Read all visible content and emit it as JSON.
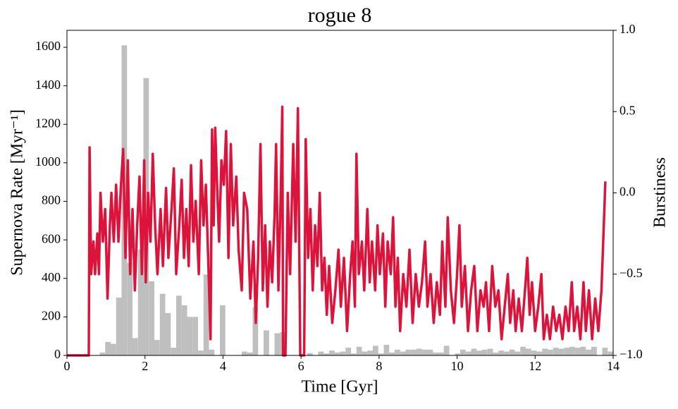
{
  "chart_data": [
    {
      "type": "histogram",
      "title": "rogue 8",
      "x_label": "Time [Gyr]",
      "y_label": "Supernova Rate [Myr⁻¹]",
      "color": "#bfbfbf",
      "bins": [
        0,
        0.14,
        0.28,
        0.42,
        0.56,
        0.7,
        0.84,
        0.98,
        1.12,
        1.26,
        1.4,
        1.54,
        1.68,
        1.82,
        1.96,
        2.1,
        2.24,
        2.38,
        2.52,
        2.66,
        2.8,
        2.94,
        3.08,
        3.22,
        3.36,
        3.5,
        3.64,
        3.78,
        3.92,
        4.06,
        4.2,
        4.34,
        4.48,
        4.62,
        4.76,
        4.9,
        5.04,
        5.18,
        5.32,
        5.46,
        5.6,
        5.74,
        5.88,
        6.02,
        6.16,
        6.3,
        6.44,
        6.58,
        6.72,
        6.86,
        7,
        7.14,
        7.28,
        7.42,
        7.56,
        7.7,
        7.84,
        7.98,
        8.12,
        8.26,
        8.4,
        8.54,
        8.68,
        8.82,
        8.96,
        9.1,
        9.24,
        9.38,
        9.52,
        9.66,
        9.8,
        9.94,
        10.08,
        10.22,
        10.36,
        10.5,
        10.64,
        10.78,
        10.92,
        11.06,
        11.2,
        11.34,
        11.48,
        11.62,
        11.76,
        11.9,
        12.04,
        12.18,
        12.32,
        12.46,
        12.6,
        12.74,
        12.88,
        13.02,
        13.16,
        13.3,
        13.44,
        13.58,
        13.72,
        13.86,
        14
      ],
      "values": [
        0,
        0,
        0,
        0,
        0,
        0,
        15,
        70,
        60,
        300,
        1610,
        480,
        90,
        550,
        1440,
        385,
        80,
        320,
        220,
        40,
        310,
        260,
        200,
        200,
        25,
        420,
        30,
        0,
        260,
        0,
        0,
        0,
        20,
        15,
        250,
        0,
        130,
        0,
        115,
        120,
        0,
        0,
        0,
        0,
        12,
        0,
        20,
        10,
        25,
        15,
        20,
        40,
        10,
        45,
        20,
        25,
        50,
        10,
        55,
        15,
        30,
        20,
        30,
        30,
        35,
        30,
        30,
        15,
        15,
        50,
        0,
        10,
        30,
        20,
        35,
        25,
        30,
        35,
        15,
        25,
        20,
        30,
        20,
        45,
        35,
        25,
        20,
        35,
        30,
        40,
        35,
        40,
        45,
        40,
        45,
        30,
        45,
        0,
        40,
        20
      ],
      "xlim": [
        0,
        14
      ],
      "xticks": [
        0,
        2,
        4,
        6,
        8,
        10,
        12,
        14
      ],
      "ylim": [
        0,
        1688
      ],
      "yticks": [
        0,
        200,
        400,
        600,
        800,
        1000,
        1200,
        1400,
        1600
      ]
    },
    {
      "type": "line",
      "y2_label": "Burstiness",
      "color": "#dc143c",
      "x": [
        0,
        0.56,
        0.58,
        0.62,
        0.68,
        0.72,
        0.78,
        0.82,
        0.86,
        0.92,
        0.98,
        1.04,
        1.1,
        1.14,
        1.2,
        1.26,
        1.32,
        1.38,
        1.44,
        1.5,
        1.56,
        1.62,
        1.68,
        1.74,
        1.8,
        1.86,
        1.92,
        1.98,
        2.02,
        2.08,
        2.14,
        2.2,
        2.26,
        2.32,
        2.4,
        2.46,
        2.54,
        2.6,
        2.68,
        2.74,
        2.8,
        2.88,
        2.94,
        3.0,
        3.06,
        3.12,
        3.18,
        3.24,
        3.3,
        3.38,
        3.44,
        3.5,
        3.56,
        3.62,
        3.68,
        3.72,
        3.76,
        3.8,
        3.84,
        3.9,
        3.96,
        4.02,
        4.08,
        4.14,
        4.2,
        4.26,
        4.34,
        4.4,
        4.48,
        4.54,
        4.62,
        4.7,
        4.78,
        4.84,
        4.9,
        4.96,
        5.02,
        5.08,
        5.14,
        5.2,
        5.26,
        5.32,
        5.36,
        5.42,
        5.48,
        5.52,
        5.54,
        5.6,
        5.66,
        5.72,
        5.8,
        5.86,
        5.92,
        5.98,
        6.08,
        6.12,
        6.18,
        6.24,
        6.3,
        6.36,
        6.42,
        6.48,
        6.54,
        6.6,
        6.66,
        6.72,
        6.8,
        6.88,
        6.96,
        7.02,
        7.1,
        7.18,
        7.26,
        7.32,
        7.38,
        7.42,
        7.48,
        7.56,
        7.62,
        7.7,
        7.76,
        7.82,
        7.9,
        7.96,
        8.02,
        8.1,
        8.16,
        8.22,
        8.3,
        8.36,
        8.42,
        8.48,
        8.54,
        8.62,
        8.7,
        8.78,
        8.86,
        8.94,
        9.02,
        9.1,
        9.18,
        9.24,
        9.32,
        9.4,
        9.48,
        9.56,
        9.62,
        9.7,
        9.76,
        9.84,
        9.92,
        10.0,
        10.06,
        10.12,
        10.2,
        10.28,
        10.36,
        10.44,
        10.52,
        10.6,
        10.68,
        10.74,
        10.82,
        10.9,
        10.98,
        11.06,
        11.14,
        11.22,
        11.3,
        11.36,
        11.44,
        11.5,
        11.58,
        11.66,
        11.74,
        11.8,
        11.86,
        11.92,
        12.0,
        12.08,
        12.16,
        12.22,
        12.3,
        12.38,
        12.46,
        12.54,
        12.62,
        12.7,
        12.78,
        12.86,
        12.94,
        13.0,
        13.08,
        13.16,
        13.24,
        13.3,
        13.38,
        13.46,
        13.54,
        13.62,
        13.7,
        13.76,
        13.8
      ],
      "values": [
        -1,
        -1,
        0.28,
        -0.5,
        -0.3,
        -0.5,
        -0.25,
        -0.5,
        0.0,
        -0.3,
        -0.1,
        -0.65,
        -0.2,
        0.0,
        -0.3,
        0.05,
        -0.3,
        0.03,
        0.27,
        -0.4,
        0.2,
        -0.5,
        -0.1,
        -0.6,
        -0.2,
        0.1,
        -0.5,
        0.2,
        -0.55,
        0.0,
        -0.3,
        0.24,
        -0.2,
        -0.5,
        -0.1,
        -0.45,
        0.03,
        -0.4,
        -0.1,
        0.15,
        -0.5,
        -0.2,
        0.08,
        -0.4,
        -0.1,
        -0.45,
        0.17,
        -0.3,
        -0.05,
        -0.5,
        0.2,
        -0.2,
        0.05,
        -0.4,
        -0.9,
        0.39,
        -0.2,
        0.4,
        0.1,
        -0.3,
        0.2,
        0.05,
        0.38,
        -0.4,
        0.3,
        -0.2,
        0.1,
        -0.35,
        -0.6,
        0.0,
        -0.1,
        -0.65,
        -0.3,
        -0.8,
        -0.4,
        0.3,
        -0.6,
        -0.2,
        -0.7,
        -0.3,
        -0.55,
        -0.15,
        0.3,
        -0.6,
        0.0,
        0.53,
        -1,
        -1,
        0.0,
        -0.5,
        0.3,
        -0.3,
        0.52,
        -1,
        -1,
        0.33,
        -0.4,
        -0.1,
        -0.6,
        -0.2,
        -0.45,
        0.0,
        -0.6,
        -0.4,
        -0.75,
        -0.45,
        -0.8,
        -0.6,
        -0.35,
        -0.7,
        -0.4,
        -0.85,
        -0.5,
        -0.3,
        -0.7,
        0.24,
        -0.5,
        -0.3,
        -0.6,
        -0.1,
        -0.55,
        -0.3,
        -0.6,
        -0.2,
        -0.5,
        -0.25,
        -0.7,
        -0.3,
        -0.5,
        -0.15,
        -0.7,
        -0.4,
        -0.85,
        -0.5,
        -0.7,
        -0.35,
        -0.8,
        -0.5,
        -0.7,
        -0.55,
        -0.3,
        -0.7,
        -0.5,
        -0.8,
        -0.55,
        -0.75,
        -0.3,
        -0.7,
        -0.15,
        -0.6,
        -0.8,
        -0.5,
        -0.2,
        -0.7,
        -0.45,
        -0.85,
        -0.6,
        -0.45,
        -0.85,
        -0.6,
        -0.7,
        -0.55,
        -0.85,
        -0.45,
        -0.7,
        -0.6,
        -0.9,
        -0.7,
        -0.5,
        -0.8,
        -0.6,
        -0.85,
        -0.65,
        -0.85,
        -0.6,
        -0.4,
        -0.75,
        -0.55,
        -0.85,
        -0.7,
        -0.5,
        -0.9,
        -0.75,
        -0.9,
        -0.7,
        -0.85,
        -0.75,
        -0.9,
        -0.7,
        -0.85,
        -0.55,
        -0.85,
        -0.7,
        -0.9,
        -0.55,
        -0.85,
        -0.6,
        -0.9,
        -0.65,
        -0.85,
        -0.6,
        -0.2,
        0.07
      ],
      "y2lim": [
        -1,
        1
      ],
      "y2ticks": [
        {
          "value": -1,
          "label": "−1.0"
        },
        {
          "value": -0.5,
          "label": "−0.5"
        },
        {
          "value": 0,
          "label": "0.0"
        },
        {
          "value": 0.5,
          "label": "0.5"
        },
        {
          "value": 1,
          "label": "1.0"
        }
      ]
    }
  ]
}
